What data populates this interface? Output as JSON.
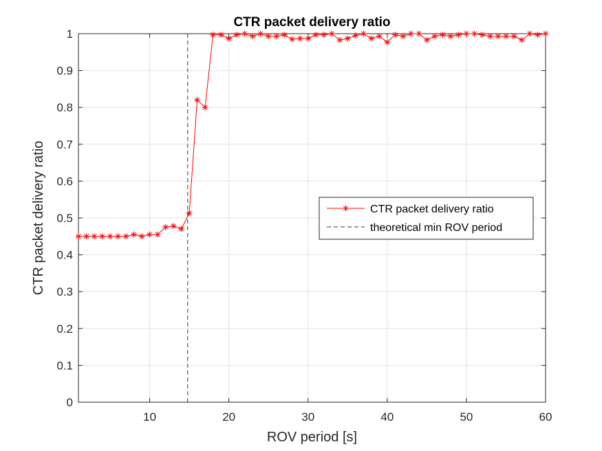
{
  "chart_data": {
    "type": "line",
    "title": "CTR packet delivery ratio",
    "xlabel": "ROV period [s]",
    "ylabel": "CTR packet delivery ratio",
    "xlim": [
      1,
      60
    ],
    "ylim": [
      0,
      1
    ],
    "xticks": [
      10,
      20,
      30,
      40,
      50,
      60
    ],
    "yticks": [
      0,
      0.1,
      0.2,
      0.3,
      0.4,
      0.5,
      0.6,
      0.7,
      0.8,
      0.9,
      1
    ],
    "ytick_labels": [
      "0",
      "0.1",
      "0.2",
      "0.3",
      "0.4",
      "0.5",
      "0.6",
      "0.7",
      "0.8",
      "0.9",
      "1"
    ],
    "grid": true,
    "legend_position": "center-right",
    "series": [
      {
        "name": "CTR packet delivery ratio",
        "color": "#ff0000",
        "marker": "asterisk",
        "x": [
          1,
          2,
          3,
          4,
          5,
          6,
          7,
          8,
          9,
          10,
          11,
          12,
          13,
          14,
          15,
          16,
          17,
          18,
          19,
          20,
          21,
          22,
          23,
          24,
          25,
          26,
          27,
          28,
          29,
          30,
          31,
          32,
          33,
          34,
          35,
          36,
          37,
          38,
          39,
          40,
          41,
          42,
          43,
          44,
          45,
          46,
          47,
          48,
          49,
          50,
          51,
          52,
          53,
          54,
          55,
          56,
          57,
          58,
          59,
          60
        ],
        "y": [
          0.45,
          0.45,
          0.45,
          0.45,
          0.45,
          0.45,
          0.45,
          0.455,
          0.45,
          0.455,
          0.455,
          0.475,
          0.478,
          0.47,
          0.513,
          0.82,
          0.8,
          0.997,
          0.997,
          0.987,
          0.997,
          1.0,
          0.993,
          1.0,
          0.993,
          0.993,
          0.997,
          0.985,
          0.987,
          0.987,
          0.997,
          0.997,
          1.0,
          0.983,
          0.987,
          0.995,
          1.0,
          0.987,
          0.993,
          0.977,
          0.997,
          0.993,
          1.0,
          1.0,
          0.983,
          0.993,
          0.997,
          0.993,
          0.997,
          1.0,
          1.0,
          0.997,
          0.993,
          0.993,
          0.993,
          0.993,
          0.983,
          1.0,
          0.997,
          1.0
        ]
      },
      {
        "name": "theoretical min ROV period",
        "color": "#333333",
        "style": "dashed",
        "x": [
          14.8,
          14.8
        ],
        "y": [
          0,
          1
        ]
      }
    ]
  }
}
